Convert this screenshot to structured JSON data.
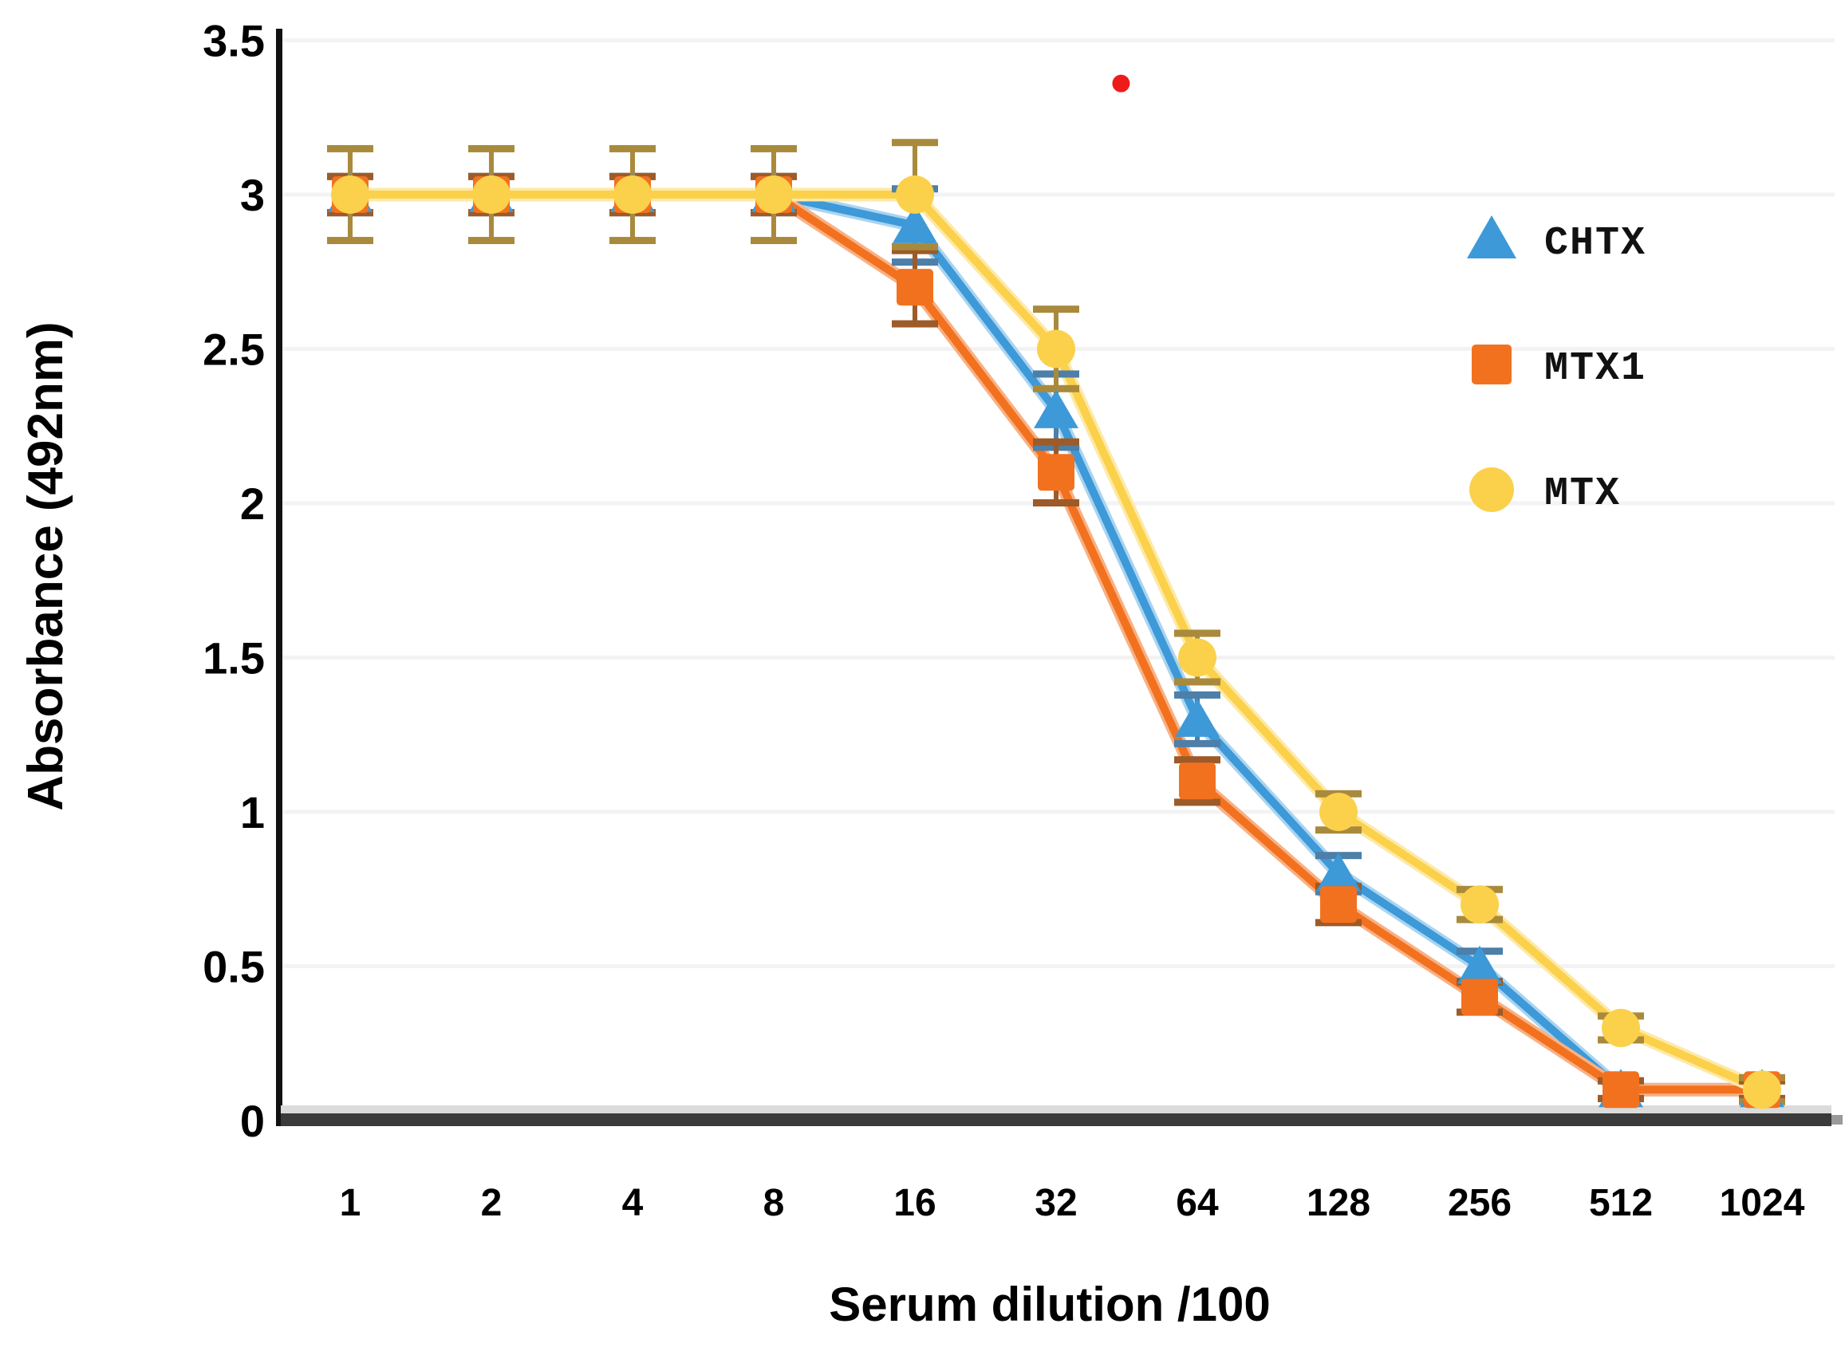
{
  "figure": {
    "background": "#FFFFFF",
    "description": "ELISA antibody titration curve with error bars"
  },
  "chart_data": {
    "type": "line",
    "title": "",
    "xlabel": "Serum dilution /100",
    "ylabel": "Absorbance (492nm)",
    "categories": [
      "1",
      "2",
      "4",
      "8",
      "16",
      "32",
      "64",
      "128",
      "256",
      "512",
      "1024"
    ],
    "x_scale": "categorical (2-fold serial dilutions)",
    "ylim": [
      0,
      3.5
    ],
    "ytick_values": [
      3.5,
      3,
      2.5,
      2,
      1.5,
      1,
      0.5,
      0
    ],
    "ytick_labels": [
      "3.5",
      "3",
      "2.5",
      "2",
      "1.5",
      "1",
      "0.5",
      "0"
    ],
    "grid": {
      "horizontal": true,
      "color": "#F3F3F3"
    },
    "axis": {
      "y_axis_color": "#111111",
      "x_axis_dark_color": "#3B3B3B",
      "x_axis_light_color": "#DBDBDB",
      "x_axis_shadow_color": "#9A9A9A",
      "tick_label_color": "#000000"
    },
    "legend": {
      "position": "inside-right",
      "entries": [
        {
          "label": "CHTX",
          "marker": "triangle",
          "color": "#3D99D8"
        },
        {
          "label": "MTX1",
          "marker": "square",
          "color": "#F2711F"
        },
        {
          "label": "MTX",
          "marker": "circle",
          "color": "#FBD14B"
        }
      ]
    },
    "series": [
      {
        "name": "CHTX",
        "marker": "triangle",
        "color": "#3D99D8",
        "halo_color": "#A9D4F0",
        "error_color": "#4D7FA8",
        "values": [
          3.0,
          3.0,
          3.0,
          3.0,
          2.9,
          2.3,
          1.3,
          0.8,
          0.5,
          0.1,
          0.1
        ],
        "errors": [
          0.06,
          0.06,
          0.06,
          0.06,
          0.12,
          0.12,
          0.08,
          0.06,
          0.05,
          0.03,
          0.03
        ]
      },
      {
        "name": "MTX1",
        "marker": "square",
        "color": "#F2711F",
        "halo_color": "#F8B184",
        "error_color": "#9C5B28",
        "values": [
          3.0,
          3.0,
          3.0,
          3.0,
          2.7,
          2.1,
          1.1,
          0.7,
          0.4,
          0.1,
          0.1
        ],
        "errors": [
          0.06,
          0.06,
          0.06,
          0.06,
          0.12,
          0.1,
          0.07,
          0.06,
          0.05,
          0.03,
          0.03
        ]
      },
      {
        "name": "MTX",
        "marker": "circle",
        "color": "#FBD14B",
        "halo_color": "#FDE9A8",
        "error_color": "#A98A3C",
        "values": [
          3.0,
          3.0,
          3.0,
          3.0,
          3.0,
          2.5,
          1.5,
          1.0,
          0.7,
          0.3,
          0.1
        ],
        "errors": [
          0.15,
          0.15,
          0.15,
          0.15,
          0.17,
          0.13,
          0.08,
          0.06,
          0.05,
          0.04,
          0.04
        ]
      }
    ],
    "annotations": [
      {
        "type": "stray-dot",
        "shape": "circle",
        "color": "#EE1B1B",
        "x_index": 5.46,
        "y": 3.36
      }
    ]
  }
}
